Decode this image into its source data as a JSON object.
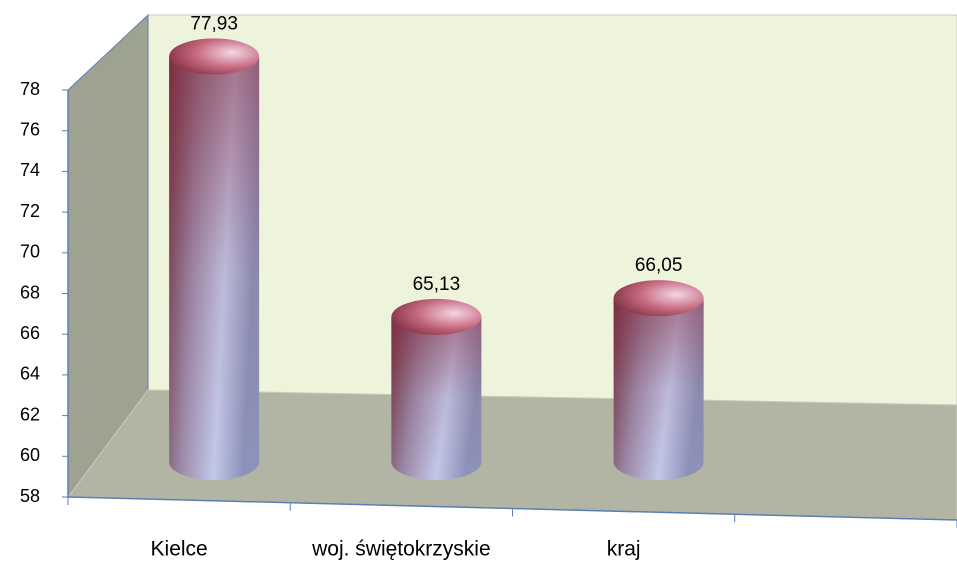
{
  "chart_data": {
    "type": "bar",
    "categories": [
      "Kielce",
      "woj. świętokrzyskie",
      "kraj"
    ],
    "values": [
      77.93,
      65.13,
      66.05
    ],
    "value_labels": [
      "77,93",
      "65,13",
      "66,05"
    ],
    "ylim": [
      58,
      78
    ],
    "yticks": [
      58,
      60,
      62,
      64,
      66,
      68,
      70,
      72,
      74,
      76,
      78
    ]
  }
}
